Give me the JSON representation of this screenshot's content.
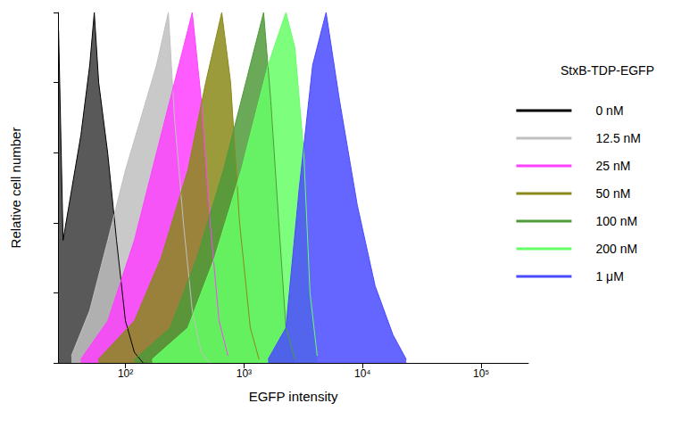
{
  "chart_data": {
    "type": "area",
    "x_label": "EGFP intensity",
    "y_label": "Relative cell number",
    "legend_title": "StxB-TDP-EGFP",
    "legend": "upper right",
    "log": "x",
    "grid": false,
    "tick_labels": "x",
    "xlim": [
      27,
      250000
    ],
    "xticks": [
      {
        "value": 100,
        "label": "10²"
      },
      {
        "value": 1000,
        "label": "10³"
      },
      {
        "value": 10000,
        "label": "10⁴"
      },
      {
        "value": 100000,
        "label": "10⁵"
      }
    ],
    "ylim": [
      0,
      100
    ],
    "yticks": [
      0,
      20,
      40,
      60,
      80,
      100
    ],
    "series": [
      {
        "name": "0 nM",
        "color": "#000000",
        "x": [
          27.3,
          29.8,
          35.4,
          42.1,
          50,
          54.6,
          59.5,
          70.8,
          84.1,
          100,
          119,
          141
        ],
        "values": [
          95,
          35,
          50,
          65,
          85,
          100,
          80,
          60,
          35,
          12,
          3,
          0
        ]
      },
      {
        "name": "12.5 nM",
        "color": "#c0c0c0",
        "x": [
          35,
          50,
          71,
          100,
          141,
          183,
          230,
          259,
          308,
          366,
          436,
          518
        ],
        "values": [
          2,
          15,
          35,
          55,
          72,
          85,
          100,
          70,
          40,
          15,
          3,
          0
        ]
      },
      {
        "name": "25 nM",
        "color": "#ff40ff",
        "x": [
          42,
          71,
          119,
          183,
          259,
          336,
          366,
          436,
          518,
          616,
          732
        ],
        "values": [
          1,
          12,
          35,
          60,
          80,
          95,
          100,
          75,
          40,
          12,
          2
        ]
      },
      {
        "name": "50 nM",
        "color": "#8a8a1a",
        "x": [
          59,
          119,
          200,
          336,
          475,
          649,
          771,
          917,
          1130,
          1340
        ],
        "values": [
          1,
          12,
          30,
          55,
          80,
          100,
          80,
          40,
          10,
          1
        ]
      },
      {
        "name": "100 nM",
        "color": "#4f9a3a",
        "x": [
          119,
          238,
          400,
          671,
          1035,
          1463,
          1680,
          1965,
          2256,
          2685
        ],
        "values": [
          1,
          10,
          30,
          55,
          80,
          100,
          75,
          40,
          10,
          1
        ]
      },
      {
        "name": "200 nM",
        "color": "#66ff66",
        "x": [
          168,
          336,
          565,
          949,
          1596,
          2256,
          2685,
          3190,
          3600,
          4140
        ],
        "values": [
          1,
          10,
          30,
          55,
          85,
          100,
          90,
          60,
          20,
          2
        ]
      },
      {
        "name": "1 μM",
        "color": "#4a4aff",
        "x": [
          1596,
          2256,
          2925,
          3790,
          4920,
          6380,
          9020,
          12740,
          18030,
          23350
        ],
        "values": [
          1,
          10,
          50,
          85,
          100,
          75,
          45,
          22,
          8,
          1
        ]
      }
    ]
  }
}
